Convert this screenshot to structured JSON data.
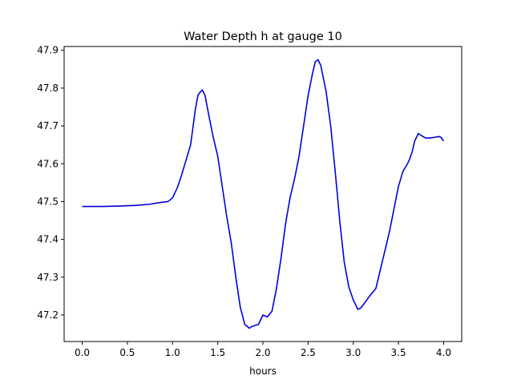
{
  "chart_data": {
    "type": "line",
    "title": "Water Depth h at gauge 10",
    "xlabel": "hours",
    "ylabel": "",
    "xlim": [
      -0.2,
      4.2
    ],
    "ylim": [
      47.13,
      47.91
    ],
    "xticks": [
      0.0,
      0.5,
      1.0,
      1.5,
      2.0,
      2.5,
      3.0,
      3.5,
      4.0
    ],
    "xtick_labels": [
      "0.0",
      "0.5",
      "1.0",
      "1.5",
      "2.0",
      "2.5",
      "3.0",
      "3.5",
      "4.0"
    ],
    "yticks": [
      47.2,
      47.3,
      47.4,
      47.5,
      47.6,
      47.7,
      47.8,
      47.9
    ],
    "ytick_labels": [
      "47.2",
      "47.3",
      "47.4",
      "47.5",
      "47.6",
      "47.7",
      "47.8",
      "47.9"
    ],
    "grid": false,
    "series": [
      {
        "color": "#0000dd",
        "x": [
          0.0,
          0.2,
          0.4,
          0.6,
          0.75,
          0.85,
          0.95,
          1.0,
          1.05,
          1.1,
          1.15,
          1.2,
          1.25,
          1.28,
          1.3,
          1.33,
          1.36,
          1.4,
          1.45,
          1.5,
          1.55,
          1.6,
          1.65,
          1.7,
          1.75,
          1.8,
          1.85,
          1.88,
          1.95,
          2.0,
          2.05,
          2.1,
          2.15,
          2.2,
          2.25,
          2.3,
          2.35,
          2.4,
          2.45,
          2.5,
          2.55,
          2.58,
          2.61,
          2.64,
          2.7,
          2.75,
          2.8,
          2.85,
          2.9,
          2.95,
          3.0,
          3.05,
          3.08,
          3.12,
          3.18,
          3.25,
          3.3,
          3.35,
          3.4,
          3.45,
          3.5,
          3.55,
          3.6,
          3.62,
          3.65,
          3.68,
          3.72,
          3.75,
          3.8,
          3.85,
          3.9,
          3.95,
          3.97,
          4.0
        ],
        "y": [
          47.487,
          47.487,
          47.488,
          47.49,
          47.493,
          47.497,
          47.5,
          47.51,
          47.535,
          47.57,
          47.61,
          47.65,
          47.74,
          47.78,
          47.788,
          47.795,
          47.78,
          47.73,
          47.67,
          47.62,
          47.54,
          47.46,
          47.39,
          47.3,
          47.22,
          47.175,
          47.165,
          47.17,
          47.175,
          47.2,
          47.195,
          47.21,
          47.27,
          47.35,
          47.44,
          47.51,
          47.56,
          47.62,
          47.7,
          47.78,
          47.84,
          47.87,
          47.875,
          47.86,
          47.79,
          47.7,
          47.58,
          47.45,
          47.34,
          47.275,
          47.24,
          47.215,
          47.218,
          47.23,
          47.25,
          47.27,
          47.32,
          47.37,
          47.42,
          47.48,
          47.54,
          47.58,
          47.6,
          47.61,
          47.63,
          47.66,
          47.68,
          47.675,
          47.668,
          47.668,
          47.67,
          47.672,
          47.67,
          47.66
        ]
      }
    ]
  }
}
